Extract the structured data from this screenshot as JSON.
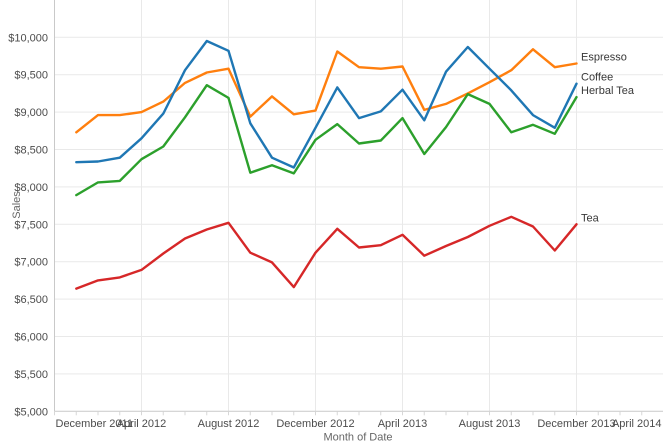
{
  "chart_data": {
    "type": "line",
    "title": "",
    "x_axis": {
      "title": "Month of Date",
      "origin_label": "December 2011",
      "months_span": 28,
      "ticks": [
        {
          "label": "December 2011",
          "t": 0
        },
        {
          "label": "April 2012",
          "t": 4
        },
        {
          "label": "August 2012",
          "t": 8
        },
        {
          "label": "December 2012",
          "t": 12
        },
        {
          "label": "April 2013",
          "t": 16
        },
        {
          "label": "August 2013",
          "t": 20
        },
        {
          "label": "December 2013",
          "t": 24
        },
        {
          "label": "April 2014",
          "t": 28
        }
      ]
    },
    "y_axis": {
      "title": "Sales",
      "min": 5000,
      "max": 10000,
      "step": 500,
      "ticks": [
        {
          "value": 5000,
          "label": "$5,000"
        },
        {
          "value": 5500,
          "label": "$5,500"
        },
        {
          "value": 6000,
          "label": "$6,000"
        },
        {
          "value": 6500,
          "label": "$6,500"
        },
        {
          "value": 7000,
          "label": "$7,000"
        },
        {
          "value": 7500,
          "label": "$7,500"
        },
        {
          "value": 8000,
          "label": "$8,000"
        },
        {
          "value": 8500,
          "label": "$8,500"
        },
        {
          "value": 9000,
          "label": "$9,000"
        },
        {
          "value": 9500,
          "label": "$9,500"
        },
        {
          "value": 10000,
          "label": "$10,000"
        }
      ]
    },
    "grid": true,
    "legend_position": "line-end-labels",
    "data_start_offset_months": 1,
    "months": [
      "January 2012",
      "February 2012",
      "March 2012",
      "April 2012",
      "May 2012",
      "June 2012",
      "July 2012",
      "August 2012",
      "September 2012",
      "October 2012",
      "November 2012",
      "December 2012",
      "January 2013",
      "February 2013",
      "March 2013",
      "April 2013",
      "May 2013",
      "June 2013",
      "July 2013",
      "August 2013",
      "September 2013",
      "October 2013",
      "November 2013",
      "December 2013"
    ],
    "series": [
      {
        "name": "Espresso",
        "color": "#ff7f0e",
        "values": [
          8730,
          8960,
          8960,
          9000,
          9140,
          9390,
          9530,
          9580,
          8940,
          9210,
          8970,
          9020,
          9810,
          9600,
          9580,
          9610,
          9030,
          9110,
          9250,
          9400,
          9560,
          9840,
          9600,
          9650
        ]
      },
      {
        "name": "Coffee",
        "color": "#1f77b4",
        "values": [
          8330,
          8340,
          8390,
          8650,
          8980,
          9560,
          9950,
          9820,
          8850,
          8390,
          8260,
          8790,
          9330,
          8920,
          9010,
          9300,
          8890,
          9540,
          9870,
          9580,
          9290,
          8960,
          8790,
          9380
        ]
      },
      {
        "name": "Herbal Tea",
        "color": "#2ca02c",
        "values": [
          7890,
          8060,
          8080,
          8370,
          8540,
          8930,
          9360,
          9190,
          8190,
          8290,
          8180,
          8630,
          8840,
          8580,
          8620,
          8920,
          8440,
          8800,
          9240,
          9110,
          8730,
          8830,
          8710,
          9200
        ]
      },
      {
        "name": "Tea",
        "color": "#d62728",
        "values": [
          6640,
          6750,
          6790,
          6890,
          7110,
          7310,
          7430,
          7520,
          7120,
          6990,
          6660,
          7120,
          7440,
          7190,
          7220,
          7360,
          7080,
          7210,
          7330,
          7480,
          7600,
          7470,
          7150,
          7500
        ]
      }
    ]
  }
}
